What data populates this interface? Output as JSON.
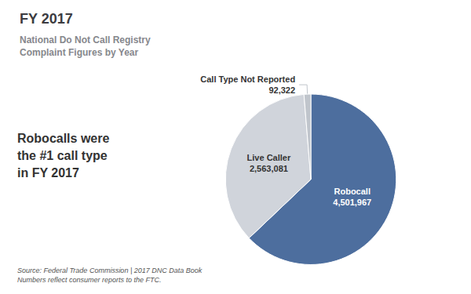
{
  "chart_data": {
    "type": "pie",
    "title": "FY 2017",
    "subtitle": "National Do Not Call Registry\nComplaint Figures by Year",
    "categories": [
      "Robocall",
      "Live Caller",
      "Call Type Not Reported"
    ],
    "values": [
      4501967,
      2563081,
      92322
    ],
    "value_labels": [
      "4,501,967",
      "2,563,081",
      "92,322"
    ],
    "colors": [
      "#4d6e9e",
      "#d0d4db",
      "#c0c5cc"
    ],
    "data_labels": true,
    "annotations": [
      "Robocalls were\nthe #1 call type\nin FY 2017",
      "Source: Federal Trade Commission | 2017 DNC Data Book\nNumbers reflect consumer reports to the FTC."
    ]
  }
}
